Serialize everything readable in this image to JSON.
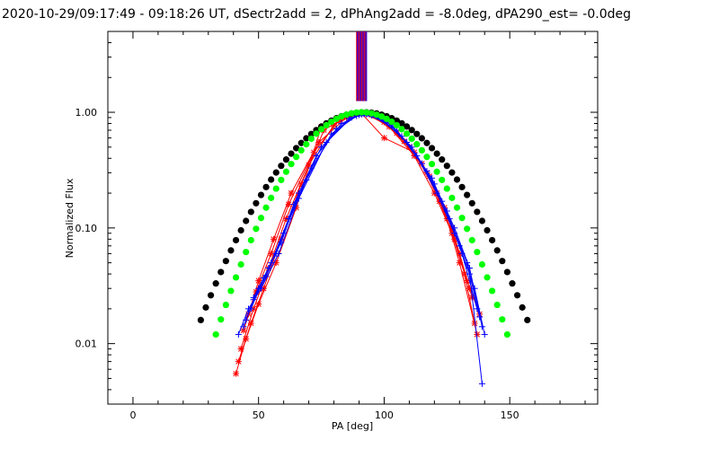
{
  "chart_data": {
    "type": "line",
    "title": "2020-10-29/09:17:49 - 09:18:26 UT, dSectr2add = 2, dPhAng2add = -8.0deg, dPA290_est= -0.0deg",
    "xlabel": "PA [deg]",
    "ylabel": "Normalized Flux",
    "xlim": [
      -10,
      185
    ],
    "ylim": [
      0.003,
      5
    ],
    "yscale": "log",
    "x_ticks": [
      0,
      50,
      100,
      150
    ],
    "x_tick_labels": [
      "0",
      "50",
      "100",
      "150"
    ],
    "y_ticks": [
      0.01,
      0.1,
      1.0
    ],
    "y_tick_labels": [
      "0.01",
      "0.10",
      "1.00"
    ],
    "grid": false,
    "colors": {
      "red": "#ff0000",
      "blue": "#0000ff",
      "green": "#00ff00",
      "black": "#000000"
    },
    "vertical_lines": {
      "x_min": 89,
      "x_max": 93,
      "count": 16,
      "y_from": 1.25,
      "colors": [
        "#ff0000",
        "#0000ff"
      ]
    },
    "curves": [
      {
        "color": "#000000",
        "marker": "filled-circle",
        "center": 92,
        "sigma": 22.6,
        "x_from": 27,
        "x_to": 157,
        "step": 2
      },
      {
        "color": "#00ff00",
        "marker": "filled-circle",
        "center": 91,
        "sigma": 19.5,
        "x_from": 33,
        "x_to": 149,
        "step": 2
      }
    ],
    "series": [
      {
        "color": "#ff0000",
        "marker": "asterisk",
        "x": [
          41,
          45,
          50,
          57,
          65,
          75,
          84,
          91,
          100,
          110,
          118,
          125,
          130,
          137
        ],
        "y": [
          0.0055,
          0.011,
          0.022,
          0.05,
          0.15,
          0.75,
          0.92,
          0.98,
          0.82,
          0.5,
          0.28,
          0.12,
          0.05,
          0.012
        ]
      },
      {
        "color": "#ff0000",
        "marker": "asterisk",
        "x": [
          42,
          47,
          52,
          59,
          67,
          76,
          86,
          93,
          102,
          112,
          120,
          127,
          132,
          136
        ],
        "y": [
          0.007,
          0.015,
          0.03,
          0.08,
          0.24,
          0.7,
          0.95,
          0.97,
          0.75,
          0.42,
          0.2,
          0.09,
          0.04,
          0.015
        ]
      },
      {
        "color": "#ff0000",
        "marker": "asterisk",
        "x": [
          43,
          48,
          54,
          61,
          70,
          80,
          88,
          95,
          105,
          115,
          122,
          128,
          133,
          138
        ],
        "y": [
          0.009,
          0.02,
          0.045,
          0.12,
          0.35,
          0.78,
          0.96,
          0.95,
          0.66,
          0.36,
          0.17,
          0.08,
          0.035,
          0.018
        ]
      },
      {
        "color": "#ff0000",
        "marker": "asterisk",
        "x": [
          44,
          49,
          55,
          62,
          72,
          82,
          90,
          98,
          108,
          117,
          124,
          130,
          135
        ],
        "y": [
          0.013,
          0.028,
          0.06,
          0.16,
          0.45,
          0.85,
          0.97,
          0.9,
          0.56,
          0.3,
          0.15,
          0.06,
          0.025
        ]
      },
      {
        "color": "#ff0000",
        "marker": "asterisk",
        "x": [
          46,
          50,
          56,
          63,
          74,
          85,
          91,
          100,
          112,
          121,
          127,
          134
        ],
        "y": [
          0.018,
          0.035,
          0.08,
          0.2,
          0.55,
          0.9,
          0.98,
          0.6,
          0.45,
          0.2,
          0.1,
          0.03
        ]
      },
      {
        "color": "#0000ff",
        "marker": "plus",
        "x": [
          42,
          46,
          51,
          58,
          66,
          77,
          87,
          93,
          103,
          113,
          121,
          128,
          134,
          139
        ],
        "y": [
          0.012,
          0.02,
          0.03,
          0.06,
          0.18,
          0.55,
          0.9,
          0.96,
          0.78,
          0.42,
          0.2,
          0.09,
          0.04,
          0.0045
        ]
      },
      {
        "color": "#0000ff",
        "marker": "plus",
        "x": [
          44,
          48,
          53,
          60,
          69,
          79,
          89,
          95,
          105,
          115,
          123,
          130,
          136,
          140
        ],
        "y": [
          0.014,
          0.024,
          0.038,
          0.09,
          0.26,
          0.65,
          0.93,
          0.94,
          0.7,
          0.36,
          0.17,
          0.07,
          0.03,
          0.012
        ]
      },
      {
        "color": "#0000ff",
        "marker": "plus",
        "x": [
          45,
          50,
          55,
          62,
          71,
          81,
          90,
          97,
          107,
          117,
          125,
          131,
          137
        ],
        "y": [
          0.016,
          0.03,
          0.05,
          0.12,
          0.33,
          0.72,
          0.95,
          0.92,
          0.62,
          0.31,
          0.14,
          0.06,
          0.02
        ]
      },
      {
        "color": "#0000ff",
        "marker": "plus",
        "x": [
          47,
          52,
          57,
          64,
          73,
          83,
          91,
          99,
          109,
          119,
          126,
          133,
          138
        ],
        "y": [
          0.02,
          0.037,
          0.06,
          0.16,
          0.42,
          0.8,
          0.96,
          0.88,
          0.55,
          0.27,
          0.12,
          0.05,
          0.017
        ]
      },
      {
        "color": "#0000ff",
        "marker": "plus",
        "x": [
          48,
          54,
          59,
          66,
          75,
          86,
          92,
          101,
          111,
          120,
          128,
          134,
          139
        ],
        "y": [
          0.025,
          0.045,
          0.075,
          0.2,
          0.5,
          0.88,
          0.97,
          0.84,
          0.5,
          0.24,
          0.1,
          0.045,
          0.014
        ]
      }
    ]
  }
}
